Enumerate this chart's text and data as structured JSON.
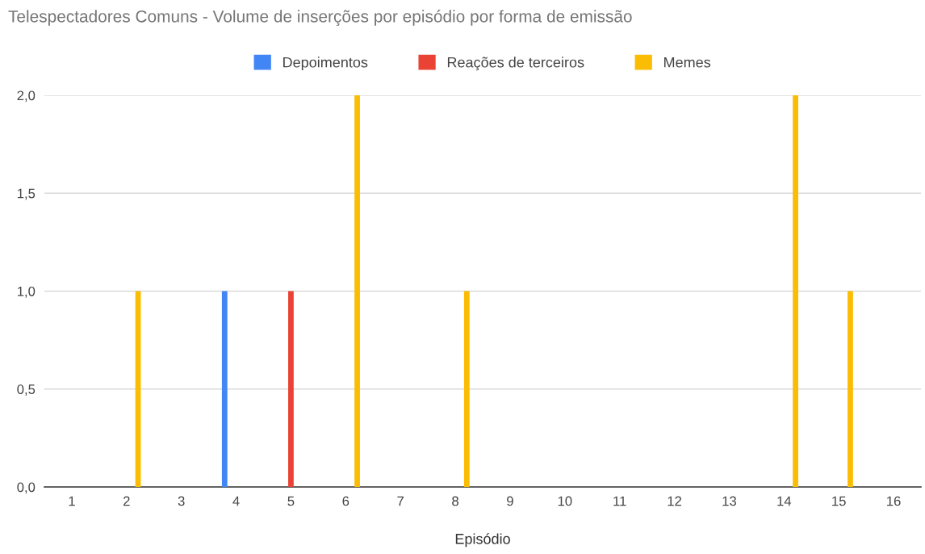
{
  "chart_data": {
    "type": "bar",
    "title": "Telespectadores Comuns - Volume de inserções por episódio por forma de emissão",
    "xlabel": "Episódio",
    "categories": [
      "1",
      "2",
      "3",
      "4",
      "5",
      "6",
      "7",
      "8",
      "9",
      "10",
      "11",
      "12",
      "13",
      "14",
      "15",
      "16"
    ],
    "series": [
      {
        "name": "Depoimentos",
        "color": "#4285f4",
        "values": [
          0,
          0,
          0,
          1,
          0,
          0,
          0,
          0,
          0,
          0,
          0,
          0,
          0,
          0,
          0,
          0
        ]
      },
      {
        "name": "Reações de terceiros",
        "color": "#ea4335",
        "values": [
          0,
          0,
          0,
          0,
          1,
          0,
          0,
          0,
          0,
          0,
          0,
          0,
          0,
          0,
          0,
          0
        ]
      },
      {
        "name": "Memes",
        "color": "#fbbc04",
        "values": [
          0,
          1,
          0,
          0,
          0,
          2,
          0,
          1,
          0,
          0,
          0,
          0,
          0,
          2,
          1,
          0
        ]
      }
    ],
    "ylim": [
      0,
      2.0
    ],
    "yticks": [
      {
        "value": 0,
        "label": "0,0"
      },
      {
        "value": 0.5,
        "label": "0,5"
      },
      {
        "value": 1.0,
        "label": "1,0"
      },
      {
        "value": 1.5,
        "label": "1,5"
      },
      {
        "value": 2.0,
        "label": "2,0"
      }
    ],
    "grid": "y",
    "legend": "top"
  }
}
